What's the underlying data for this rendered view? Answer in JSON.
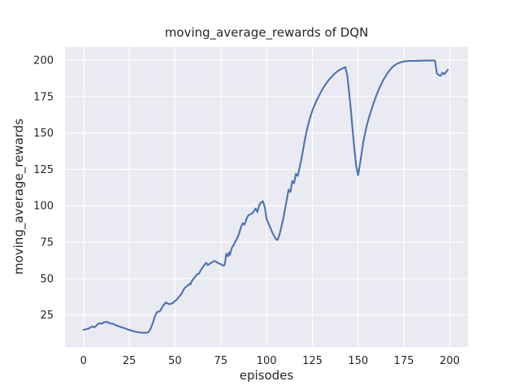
{
  "chart_data": {
    "type": "line",
    "title": "moving_average_rewards of DQN",
    "xlabel": "episodes",
    "ylabel": "moving_average_rewards",
    "x_ticks": [
      0,
      25,
      50,
      75,
      100,
      125,
      150,
      175,
      200
    ],
    "y_ticks": [
      25,
      50,
      75,
      100,
      125,
      150,
      175,
      200
    ],
    "xlim": [
      -10.1,
      210.0
    ],
    "ylim": [
      2.9,
      209.2
    ],
    "grid": true,
    "legend": null,
    "colors": {
      "line": "#4c72b0",
      "axes_bg": "#eaeaf2",
      "grid": "#ffffff",
      "text": "#262626",
      "figure_bg": "#ffffff"
    },
    "series": [
      {
        "name": "moving_average_rewards",
        "color": "#4c72b0",
        "points": [
          [
            0,
            14.8
          ],
          [
            1,
            15.0
          ],
          [
            2,
            15.4
          ],
          [
            3,
            15.8
          ],
          [
            4,
            16.6
          ],
          [
            5,
            17.1
          ],
          [
            6,
            16.5
          ],
          [
            7,
            17.6
          ],
          [
            8,
            18.9
          ],
          [
            9,
            19.3
          ],
          [
            10,
            18.8
          ],
          [
            11,
            19.9
          ],
          [
            12,
            20.1
          ],
          [
            13,
            20.2
          ],
          [
            14,
            19.5
          ],
          [
            15,
            19.1
          ],
          [
            16,
            19.0
          ],
          [
            17,
            18.3
          ],
          [
            18,
            17.7
          ],
          [
            19,
            17.3
          ],
          [
            20,
            16.9
          ],
          [
            21,
            16.4
          ],
          [
            22,
            16.1
          ],
          [
            23,
            15.6
          ],
          [
            24,
            15.1
          ],
          [
            25,
            14.7
          ],
          [
            26,
            14.3
          ],
          [
            27,
            13.9
          ],
          [
            28,
            13.6
          ],
          [
            29,
            13.3
          ],
          [
            30,
            13.1
          ],
          [
            31,
            12.9
          ],
          [
            32,
            12.8
          ],
          [
            33,
            12.7
          ],
          [
            34,
            12.7
          ],
          [
            35,
            12.9
          ],
          [
            36,
            14.0
          ],
          [
            37,
            16.5
          ],
          [
            38,
            20.0
          ],
          [
            39,
            24.0
          ],
          [
            40,
            26.8
          ],
          [
            41,
            27.3
          ],
          [
            42,
            27.9
          ],
          [
            43,
            30.4
          ],
          [
            44,
            32.1
          ],
          [
            45,
            33.6
          ],
          [
            46,
            32.9
          ],
          [
            47,
            32.3
          ],
          [
            48,
            32.9
          ],
          [
            49,
            33.3
          ],
          [
            50,
            34.6
          ],
          [
            51,
            35.6
          ],
          [
            52,
            37.2
          ],
          [
            53,
            38.6
          ],
          [
            54,
            40.6
          ],
          [
            55,
            43.1
          ],
          [
            56,
            44.3
          ],
          [
            57,
            45.2
          ],
          [
            58,
            46.5
          ],
          [
            58.5,
            46.0
          ],
          [
            59,
            48.0
          ],
          [
            60,
            49.8
          ],
          [
            61,
            51.2
          ],
          [
            62,
            52.8
          ],
          [
            63,
            53.3
          ],
          [
            64,
            55.5
          ],
          [
            65,
            57.5
          ],
          [
            66,
            59.3
          ],
          [
            67,
            60.8
          ],
          [
            68,
            59.2
          ],
          [
            69,
            60.3
          ],
          [
            70,
            61.0
          ],
          [
            71,
            61.8
          ],
          [
            72,
            62.0
          ],
          [
            73,
            61.0
          ],
          [
            74,
            60.3
          ],
          [
            75,
            59.9
          ],
          [
            76,
            58.9
          ],
          [
            77,
            59.2
          ],
          [
            77.5,
            62.5
          ],
          [
            78,
            67.0
          ],
          [
            79,
            65.3
          ],
          [
            79.5,
            68.0
          ],
          [
            80,
            66.3
          ],
          [
            81,
            71.0
          ],
          [
            82,
            73.0
          ],
          [
            83,
            75.5
          ],
          [
            84,
            78.0
          ],
          [
            85,
            81.0
          ],
          [
            86,
            85.4
          ],
          [
            87,
            88.0
          ],
          [
            88,
            87.0
          ],
          [
            89,
            91.0
          ],
          [
            90,
            93.4
          ],
          [
            91,
            94.1
          ],
          [
            92,
            94.6
          ],
          [
            93,
            96.1
          ],
          [
            94,
            98.1
          ],
          [
            95,
            95.6
          ],
          [
            96,
            100.4
          ],
          [
            97,
            102.4
          ],
          [
            98,
            103.1
          ],
          [
            99,
            99.0
          ],
          [
            100,
            91.0
          ],
          [
            101,
            88.0
          ],
          [
            102,
            85.0
          ],
          [
            103,
            82.0
          ],
          [
            104,
            79.6
          ],
          [
            105,
            77.1
          ],
          [
            106,
            76.5
          ],
          [
            107,
            80.0
          ],
          [
            108,
            85.0
          ],
          [
            109,
            90.5
          ],
          [
            110,
            97.0
          ],
          [
            111,
            104.0
          ],
          [
            112,
            111.0
          ],
          [
            113,
            109.5
          ],
          [
            114,
            117.0
          ],
          [
            115,
            115.5
          ],
          [
            116,
            122.0
          ],
          [
            117,
            120.5
          ],
          [
            118,
            126.0
          ],
          [
            119,
            132.0
          ],
          [
            120,
            139.0
          ],
          [
            121,
            146.0
          ],
          [
            122,
            152.0
          ],
          [
            123,
            157.0
          ],
          [
            124,
            161.5
          ],
          [
            125,
            165.5
          ],
          [
            126,
            168.5
          ],
          [
            127,
            171.5
          ],
          [
            128,
            174.0
          ],
          [
            129,
            176.5
          ],
          [
            130,
            179.0
          ],
          [
            131,
            181.0
          ],
          [
            132,
            183.0
          ],
          [
            133,
            184.8
          ],
          [
            134,
            186.4
          ],
          [
            135,
            187.8
          ],
          [
            136,
            189.2
          ],
          [
            137,
            190.5
          ],
          [
            138,
            191.6
          ],
          [
            139,
            192.6
          ],
          [
            140,
            193.4
          ],
          [
            141,
            194.1
          ],
          [
            142,
            194.7
          ],
          [
            143,
            195.2
          ],
          [
            144,
            190.0
          ],
          [
            145,
            179.0
          ],
          [
            146,
            166.0
          ],
          [
            147,
            152.0
          ],
          [
            148,
            138.0
          ],
          [
            149,
            127.0
          ],
          [
            150,
            121.0
          ],
          [
            151,
            128.5
          ],
          [
            152,
            137.0
          ],
          [
            153,
            145.0
          ],
          [
            154,
            151.0
          ],
          [
            155,
            156.5
          ],
          [
            156,
            161.0
          ],
          [
            157,
            165.0
          ],
          [
            158,
            169.0
          ],
          [
            159,
            172.5
          ],
          [
            160,
            176.0
          ],
          [
            161,
            179.0
          ],
          [
            162,
            182.0
          ],
          [
            163,
            184.5
          ],
          [
            164,
            187.0
          ],
          [
            165,
            189.0
          ],
          [
            166,
            191.0
          ],
          [
            167,
            192.8
          ],
          [
            168,
            194.3
          ],
          [
            169,
            195.6
          ],
          [
            170,
            196.6
          ],
          [
            171,
            197.4
          ],
          [
            172,
            198.0
          ],
          [
            173,
            198.4
          ],
          [
            174,
            198.8
          ],
          [
            175,
            199.1
          ],
          [
            176,
            199.3
          ],
          [
            177,
            199.4
          ],
          [
            178,
            199.5
          ],
          [
            180,
            199.5
          ],
          [
            182,
            199.6
          ],
          [
            184,
            199.6
          ],
          [
            186,
            199.7
          ],
          [
            188,
            199.7
          ],
          [
            190,
            199.8
          ],
          [
            191,
            199.8
          ],
          [
            192,
            199.6
          ],
          [
            192.5,
            195.0
          ],
          [
            193,
            190.8
          ],
          [
            194,
            189.9
          ],
          [
            195,
            189.2
          ],
          [
            196,
            191.4
          ],
          [
            197,
            190.4
          ],
          [
            198,
            191.9
          ],
          [
            199,
            193.5
          ]
        ]
      }
    ]
  }
}
